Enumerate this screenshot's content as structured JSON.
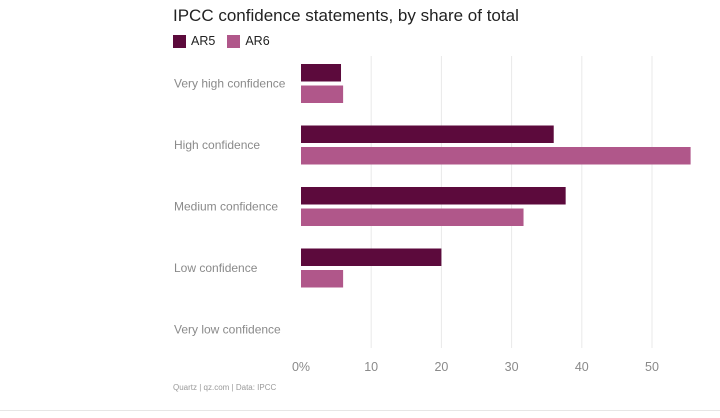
{
  "chart_data": {
    "type": "bar",
    "orientation": "horizontal",
    "title": "IPCC confidence statements, by share of total",
    "categories": [
      "Very high confidence",
      "High confidence",
      "Medium confidence",
      "Low confidence",
      "Very low confidence"
    ],
    "series": [
      {
        "name": "AR5",
        "color": "#5c0a3c",
        "values": [
          5.7,
          36,
          37.7,
          20,
          0
        ]
      },
      {
        "name": "AR6",
        "color": "#b0578a",
        "values": [
          6,
          55.5,
          31.7,
          6,
          0
        ]
      }
    ],
    "xlim": [
      0,
      56
    ],
    "xticks": [
      0,
      10,
      20,
      30,
      40,
      50
    ],
    "xtick_labels": [
      "0%",
      "10",
      "20",
      "30",
      "40",
      "50"
    ],
    "grid": true,
    "legend_position": "top-left"
  },
  "source_text": "Quartz | qz.com | Data: IPCC"
}
